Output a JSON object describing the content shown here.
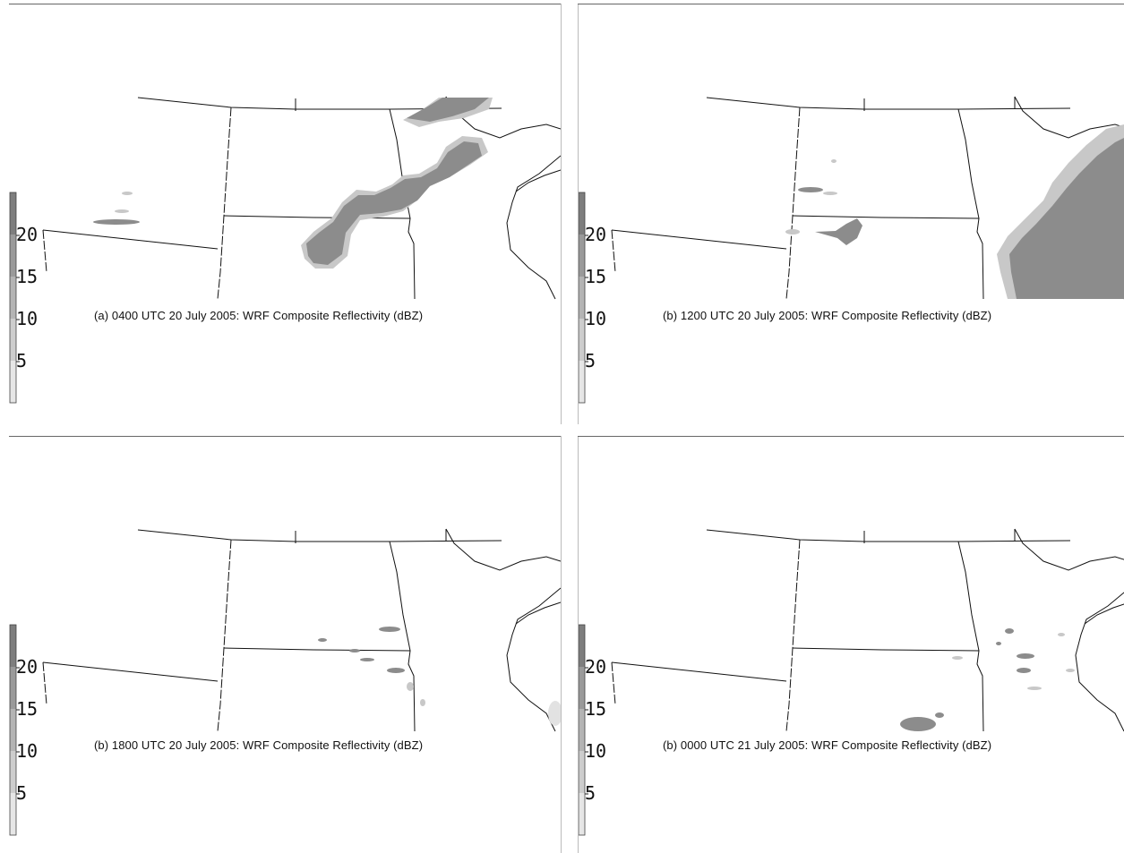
{
  "figure": {
    "colors": {
      "storm_dark": "#8c8c8c",
      "storm_light": "#c8c8c8",
      "storm_faint": "#e2e2e2",
      "boundary": "#111111"
    },
    "colorbar": {
      "tick_labels": [
        "20",
        "15",
        "10",
        "5"
      ],
      "segment_colors": [
        "#7e7e7e",
        "#9a9a9a",
        "#b4b4b4",
        "#cdcdcd",
        "#e6e6e6"
      ]
    },
    "panels": [
      {
        "caption": "(a) 0400 UTC 20 July 2005: WRF Composite Reflectivity (dBZ)"
      },
      {
        "caption": "(b) 1200 UTC 20 July 2005: WRF Composite Reflectivity (dBZ)"
      },
      {
        "caption": "(b) 1800 UTC 20 July 2005: WRF Composite Reflectivity (dBZ)"
      },
      {
        "caption": "(b) 0000 UTC 21 July 2005: WRF Composite Reflectivity (dBZ)"
      }
    ]
  }
}
